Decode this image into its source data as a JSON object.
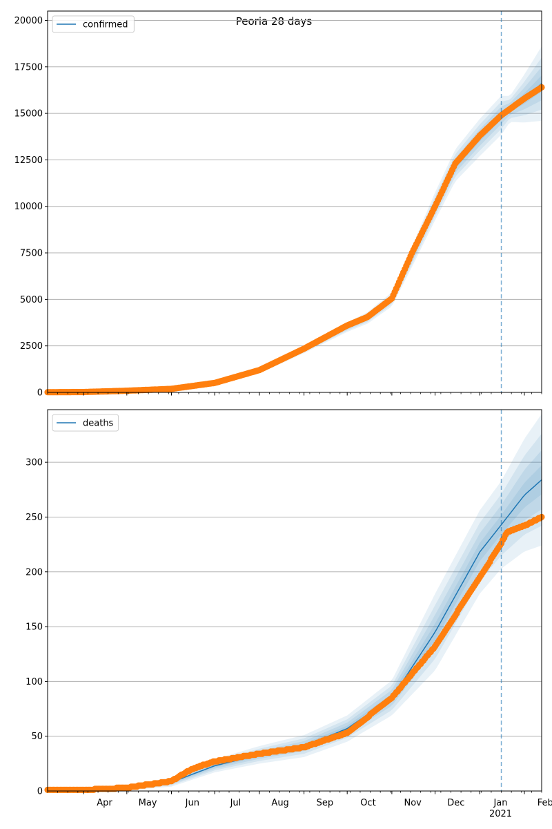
{
  "figure": {
    "title": "Peoria 28 days"
  },
  "colors": {
    "model_line": "#1f77b4",
    "observed": "#ff7f0e",
    "band": "#1f77b4",
    "vline": "#1f77b4",
    "grid": "#b0b0b0"
  },
  "month_ticks": [
    {
      "label": "Apr",
      "date": "2020-04-01"
    },
    {
      "label": "May",
      "date": "2020-05-01"
    },
    {
      "label": "Jun",
      "date": "2020-06-01"
    },
    {
      "label": "Jul",
      "date": "2020-07-01"
    },
    {
      "label": "Aug",
      "date": "2020-08-01"
    },
    {
      "label": "Sep",
      "date": "2020-09-01"
    },
    {
      "label": "Oct",
      "date": "2020-10-01"
    },
    {
      "label": "Nov",
      "date": "2020-11-01"
    },
    {
      "label": "Dec",
      "date": "2020-12-01"
    },
    {
      "label": "Jan",
      "date": "2021-01-01"
    },
    {
      "label": "Feb",
      "date": "2021-02-01"
    }
  ],
  "year_label": "2021",
  "chart_data": [
    {
      "type": "line",
      "legend": "confirmed",
      "legend_position": "top-left",
      "grid": "horizontal",
      "x_range": [
        "2020-03-07",
        "2021-02-13"
      ],
      "ylim": [
        0,
        20500
      ],
      "yticks": [
        "0",
        "2500",
        "5000",
        "7500",
        "10000",
        "12500",
        "15000",
        "17500",
        "20000"
      ],
      "forecast_start": "2021-01-16",
      "model_series": [
        {
          "date": "2020-03-07",
          "value": 0
        },
        {
          "date": "2020-04-01",
          "value": 20
        },
        {
          "date": "2020-05-01",
          "value": 80
        },
        {
          "date": "2020-06-01",
          "value": 180
        },
        {
          "date": "2020-07-01",
          "value": 500
        },
        {
          "date": "2020-08-01",
          "value": 1150
        },
        {
          "date": "2020-09-01",
          "value": 2300
        },
        {
          "date": "2020-10-01",
          "value": 3500
        },
        {
          "date": "2020-10-15",
          "value": 4000
        },
        {
          "date": "2020-11-01",
          "value": 5000
        },
        {
          "date": "2020-11-15",
          "value": 7300
        },
        {
          "date": "2020-12-01",
          "value": 10000
        },
        {
          "date": "2020-12-15",
          "value": 12200
        },
        {
          "date": "2021-01-01",
          "value": 13700
        },
        {
          "date": "2021-01-16",
          "value": 14900
        },
        {
          "date": "2021-02-01",
          "value": 15800
        },
        {
          "date": "2021-02-13",
          "value": 16600
        }
      ],
      "band_spread": [
        {
          "date": "2020-03-07",
          "value": 0
        },
        {
          "date": "2020-06-01",
          "value": 30
        },
        {
          "date": "2020-08-01",
          "value": 130
        },
        {
          "date": "2020-10-01",
          "value": 250
        },
        {
          "date": "2020-11-01",
          "value": 380
        },
        {
          "date": "2020-12-01",
          "value": 750
        },
        {
          "date": "2021-01-01",
          "value": 1000
        },
        {
          "date": "2021-01-16",
          "value": 1050
        },
        {
          "date": "2021-01-22",
          "value": 700
        },
        {
          "date": "2021-02-13",
          "value": 2000
        }
      ],
      "observed": [
        {
          "date": "2020-03-07",
          "value": 10
        },
        {
          "date": "2020-04-01",
          "value": 20
        },
        {
          "date": "2020-05-01",
          "value": 90
        },
        {
          "date": "2020-06-01",
          "value": 190
        },
        {
          "date": "2020-07-01",
          "value": 510
        },
        {
          "date": "2020-08-01",
          "value": 1200
        },
        {
          "date": "2020-09-01",
          "value": 2350
        },
        {
          "date": "2020-10-01",
          "value": 3600
        },
        {
          "date": "2020-10-15",
          "value": 4050
        },
        {
          "date": "2020-11-01",
          "value": 5050
        },
        {
          "date": "2020-11-15",
          "value": 7500
        },
        {
          "date": "2020-12-01",
          "value": 10000
        },
        {
          "date": "2020-12-15",
          "value": 12300
        },
        {
          "date": "2021-01-01",
          "value": 13800
        },
        {
          "date": "2021-01-16",
          "value": 14900
        },
        {
          "date": "2021-02-01",
          "value": 15800
        },
        {
          "date": "2021-02-13",
          "value": 16400
        }
      ]
    },
    {
      "type": "line",
      "legend": "deaths",
      "legend_position": "top-left",
      "grid": "horizontal",
      "x_range": [
        "2020-03-07",
        "2021-02-13"
      ],
      "ylim": [
        0,
        348
      ],
      "yticks": [
        "0",
        "50",
        "100",
        "150",
        "200",
        "250",
        "300"
      ],
      "forecast_start": "2021-01-16",
      "model_series": [
        {
          "date": "2020-03-07",
          "value": 0
        },
        {
          "date": "2020-04-01",
          "value": 1
        },
        {
          "date": "2020-05-01",
          "value": 3
        },
        {
          "date": "2020-06-01",
          "value": 8
        },
        {
          "date": "2020-07-01",
          "value": 23
        },
        {
          "date": "2020-08-01",
          "value": 33
        },
        {
          "date": "2020-09-01",
          "value": 41
        },
        {
          "date": "2020-10-01",
          "value": 57
        },
        {
          "date": "2020-11-01",
          "value": 85
        },
        {
          "date": "2020-12-01",
          "value": 145
        },
        {
          "date": "2021-01-01",
          "value": 218
        },
        {
          "date": "2021-01-16",
          "value": 243
        },
        {
          "date": "2021-02-01",
          "value": 270
        },
        {
          "date": "2021-02-13",
          "value": 284
        }
      ],
      "band_spread": [
        {
          "date": "2020-03-07",
          "value": 0
        },
        {
          "date": "2020-06-01",
          "value": 4
        },
        {
          "date": "2020-08-01",
          "value": 8
        },
        {
          "date": "2020-10-01",
          "value": 12
        },
        {
          "date": "2020-11-01",
          "value": 16
        },
        {
          "date": "2020-12-01",
          "value": 35
        },
        {
          "date": "2021-01-01",
          "value": 38
        },
        {
          "date": "2021-01-16",
          "value": 40
        },
        {
          "date": "2021-02-13",
          "value": 60
        }
      ],
      "observed": [
        {
          "date": "2020-03-07",
          "value": 1
        },
        {
          "date": "2020-04-01",
          "value": 1
        },
        {
          "date": "2020-05-01",
          "value": 3
        },
        {
          "date": "2020-06-01",
          "value": 9
        },
        {
          "date": "2020-06-15",
          "value": 20
        },
        {
          "date": "2020-07-01",
          "value": 27
        },
        {
          "date": "2020-08-01",
          "value": 34
        },
        {
          "date": "2020-09-01",
          "value": 40
        },
        {
          "date": "2020-10-01",
          "value": 53
        },
        {
          "date": "2020-11-01",
          "value": 85
        },
        {
          "date": "2020-12-01",
          "value": 132
        },
        {
          "date": "2021-01-01",
          "value": 195
        },
        {
          "date": "2021-01-16",
          "value": 226
        },
        {
          "date": "2021-01-20",
          "value": 236
        },
        {
          "date": "2021-02-01",
          "value": 242
        },
        {
          "date": "2021-02-13",
          "value": 250
        }
      ]
    }
  ]
}
